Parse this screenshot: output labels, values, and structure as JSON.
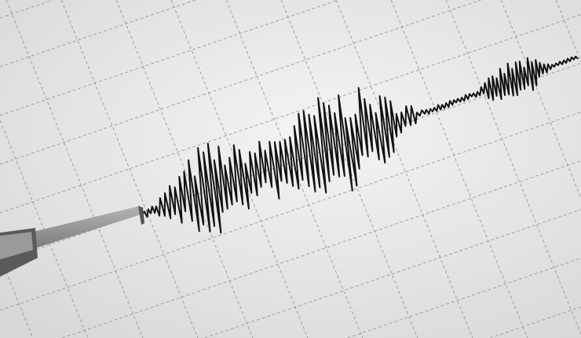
{
  "scene": {
    "subject": "seismograph",
    "colors": {
      "paper": "#ececec",
      "paper_shade": "#dcdcdc",
      "grid": "#8f8f8f",
      "trace": "#111111",
      "stylus": "#8a8a8a"
    },
    "icons": [
      "seismograph-stylus-icon"
    ]
  }
}
